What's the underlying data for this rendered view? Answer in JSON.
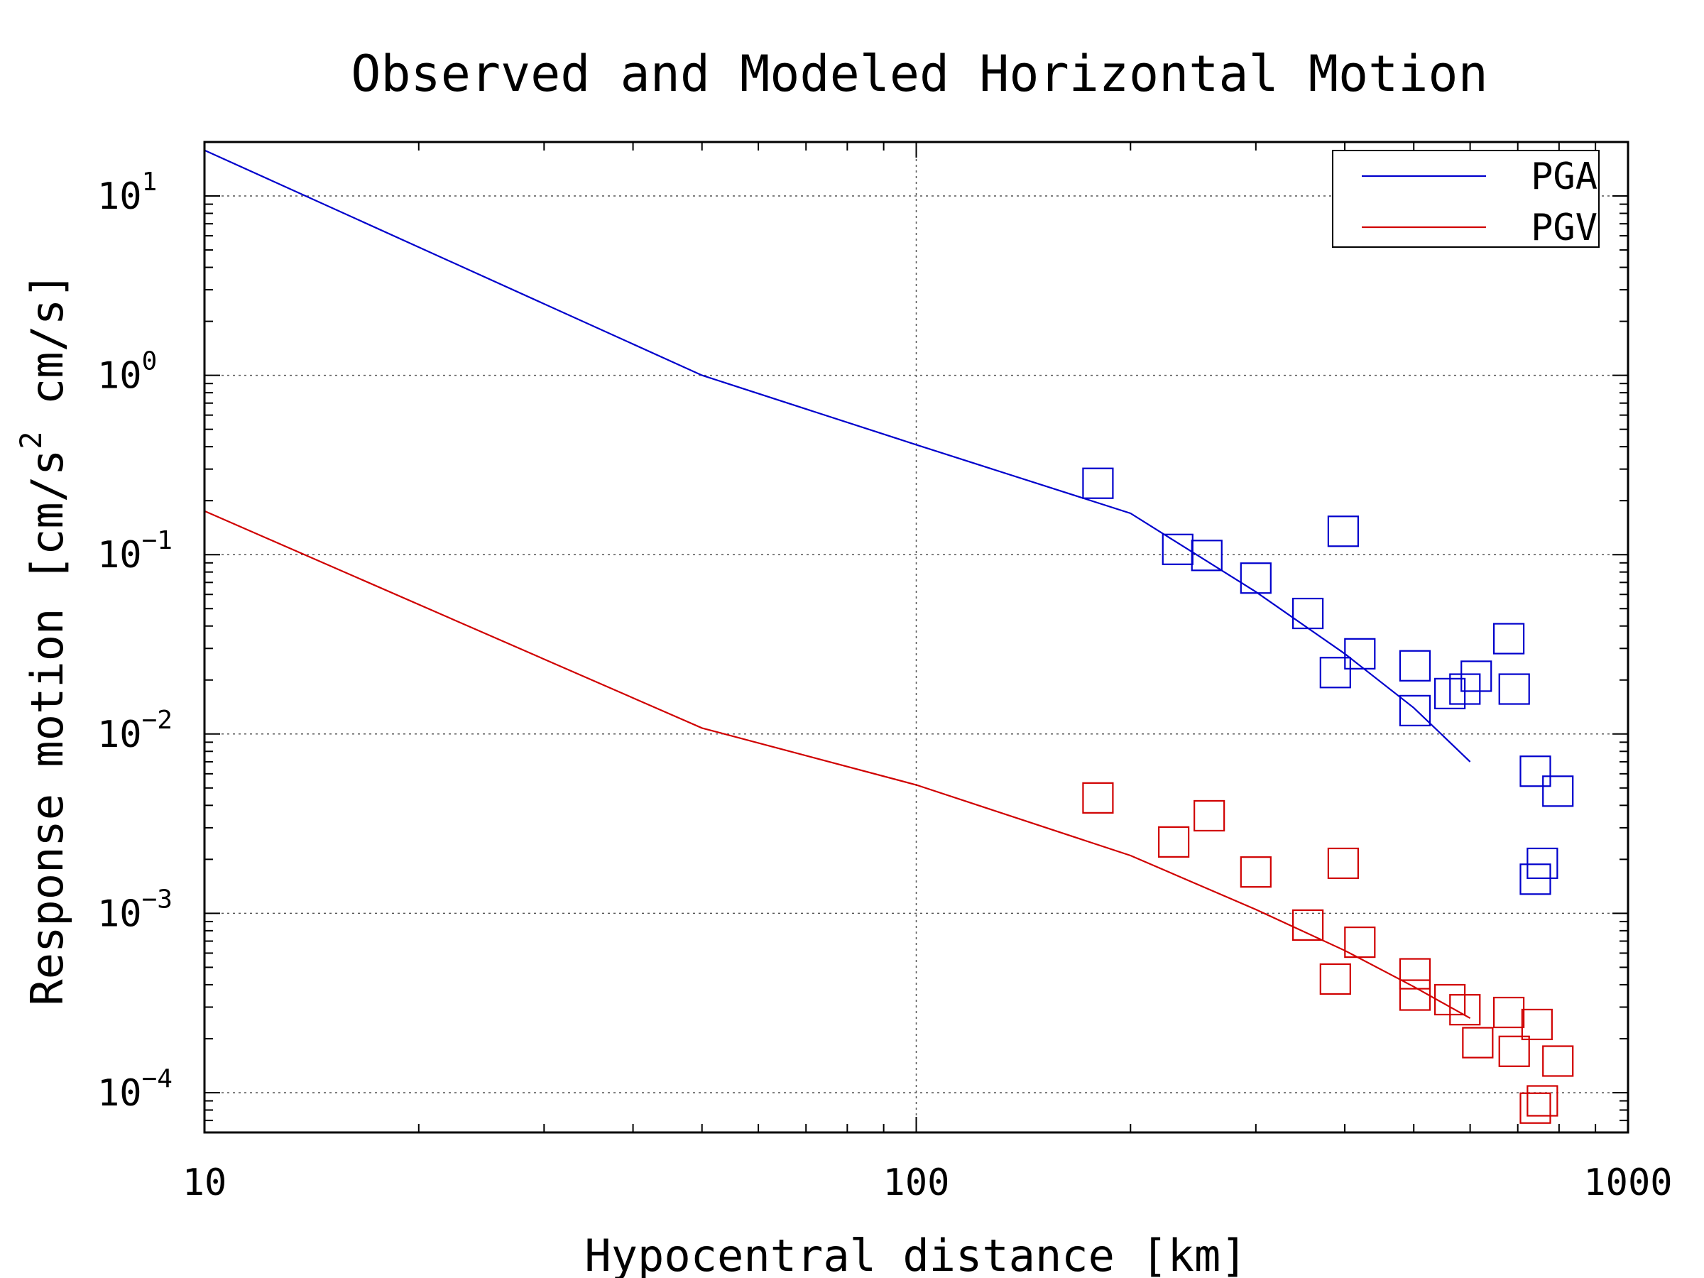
{
  "chart_data": {
    "type": "scatter",
    "title": "Observed and Modeled Horizontal Motion",
    "xlabel": "Hypocentral distance [km]",
    "ylabel_main": "Response motion  [cm/s",
    "ylabel_sup": "2",
    "ylabel_tail": "  cm/s]",
    "xscale": "log",
    "yscale": "log",
    "xlim": [
      10,
      1000
    ],
    "ylim": [
      6e-05,
      20
    ],
    "grid": true,
    "legend_position": "top-right",
    "x_ticks": [
      {
        "value": 10,
        "label": "10"
      },
      {
        "value": 100,
        "label": "100"
      },
      {
        "value": 1000,
        "label": "1000"
      }
    ],
    "y_ticks": [
      {
        "value": 10,
        "base": "10",
        "exp": "1"
      },
      {
        "value": 1,
        "base": "10",
        "exp": "0"
      },
      {
        "value": 0.1,
        "base": "10",
        "exp": "−1"
      },
      {
        "value": 0.01,
        "base": "10",
        "exp": "−2"
      },
      {
        "value": 0.001,
        "base": "10",
        "exp": "−3"
      },
      {
        "value": 0.0001,
        "base": "10",
        "exp": "−4"
      }
    ],
    "series": [
      {
        "name": "PGA",
        "color": "#0000cc",
        "model": [
          [
            10,
            18
          ],
          [
            50,
            1.0
          ],
          [
            100,
            0.41
          ],
          [
            200,
            0.17
          ],
          [
            300,
            0.062
          ],
          [
            400,
            0.028
          ],
          [
            500,
            0.014
          ],
          [
            600,
            0.007
          ]
        ],
        "observed": [
          [
            180,
            0.25
          ],
          [
            233,
            0.107
          ],
          [
            256,
            0.099
          ],
          [
            300,
            0.074
          ],
          [
            355,
            0.047
          ],
          [
            398,
            0.135
          ],
          [
            388,
            0.022
          ],
          [
            420,
            0.028
          ],
          [
            502,
            0.024
          ],
          [
            502,
            0.0135
          ],
          [
            562,
            0.0168
          ],
          [
            590,
            0.0178
          ],
          [
            612,
            0.021
          ],
          [
            680,
            0.034
          ],
          [
            692,
            0.0178
          ],
          [
            741,
            0.0062
          ],
          [
            797,
            0.0048
          ],
          [
            758,
            0.0019
          ],
          [
            741,
            0.00155
          ]
        ]
      },
      {
        "name": "PGV",
        "color": "#d00000",
        "model": [
          [
            10,
            0.175
          ],
          [
            50,
            0.0108
          ],
          [
            100,
            0.0052
          ],
          [
            200,
            0.0021
          ],
          [
            300,
            0.00105
          ],
          [
            400,
            0.00062
          ],
          [
            500,
            0.00039
          ],
          [
            600,
            0.00026
          ]
        ],
        "observed": [
          [
            180,
            0.0044
          ],
          [
            230,
            0.0025
          ],
          [
            258,
            0.0035
          ],
          [
            300,
            0.0017
          ],
          [
            355,
            0.00086
          ],
          [
            398,
            0.0019
          ],
          [
            388,
            0.00043
          ],
          [
            420,
            0.00069
          ],
          [
            502,
            0.00046
          ],
          [
            502,
            0.00035
          ],
          [
            562,
            0.00033
          ],
          [
            590,
            0.00029
          ],
          [
            615,
            0.00019
          ],
          [
            680,
            0.00028
          ],
          [
            692,
            0.00017
          ],
          [
            745,
            0.00024
          ],
          [
            797,
            0.00015
          ],
          [
            758,
            9e-05
          ],
          [
            741,
            8.2e-05
          ]
        ]
      }
    ]
  }
}
